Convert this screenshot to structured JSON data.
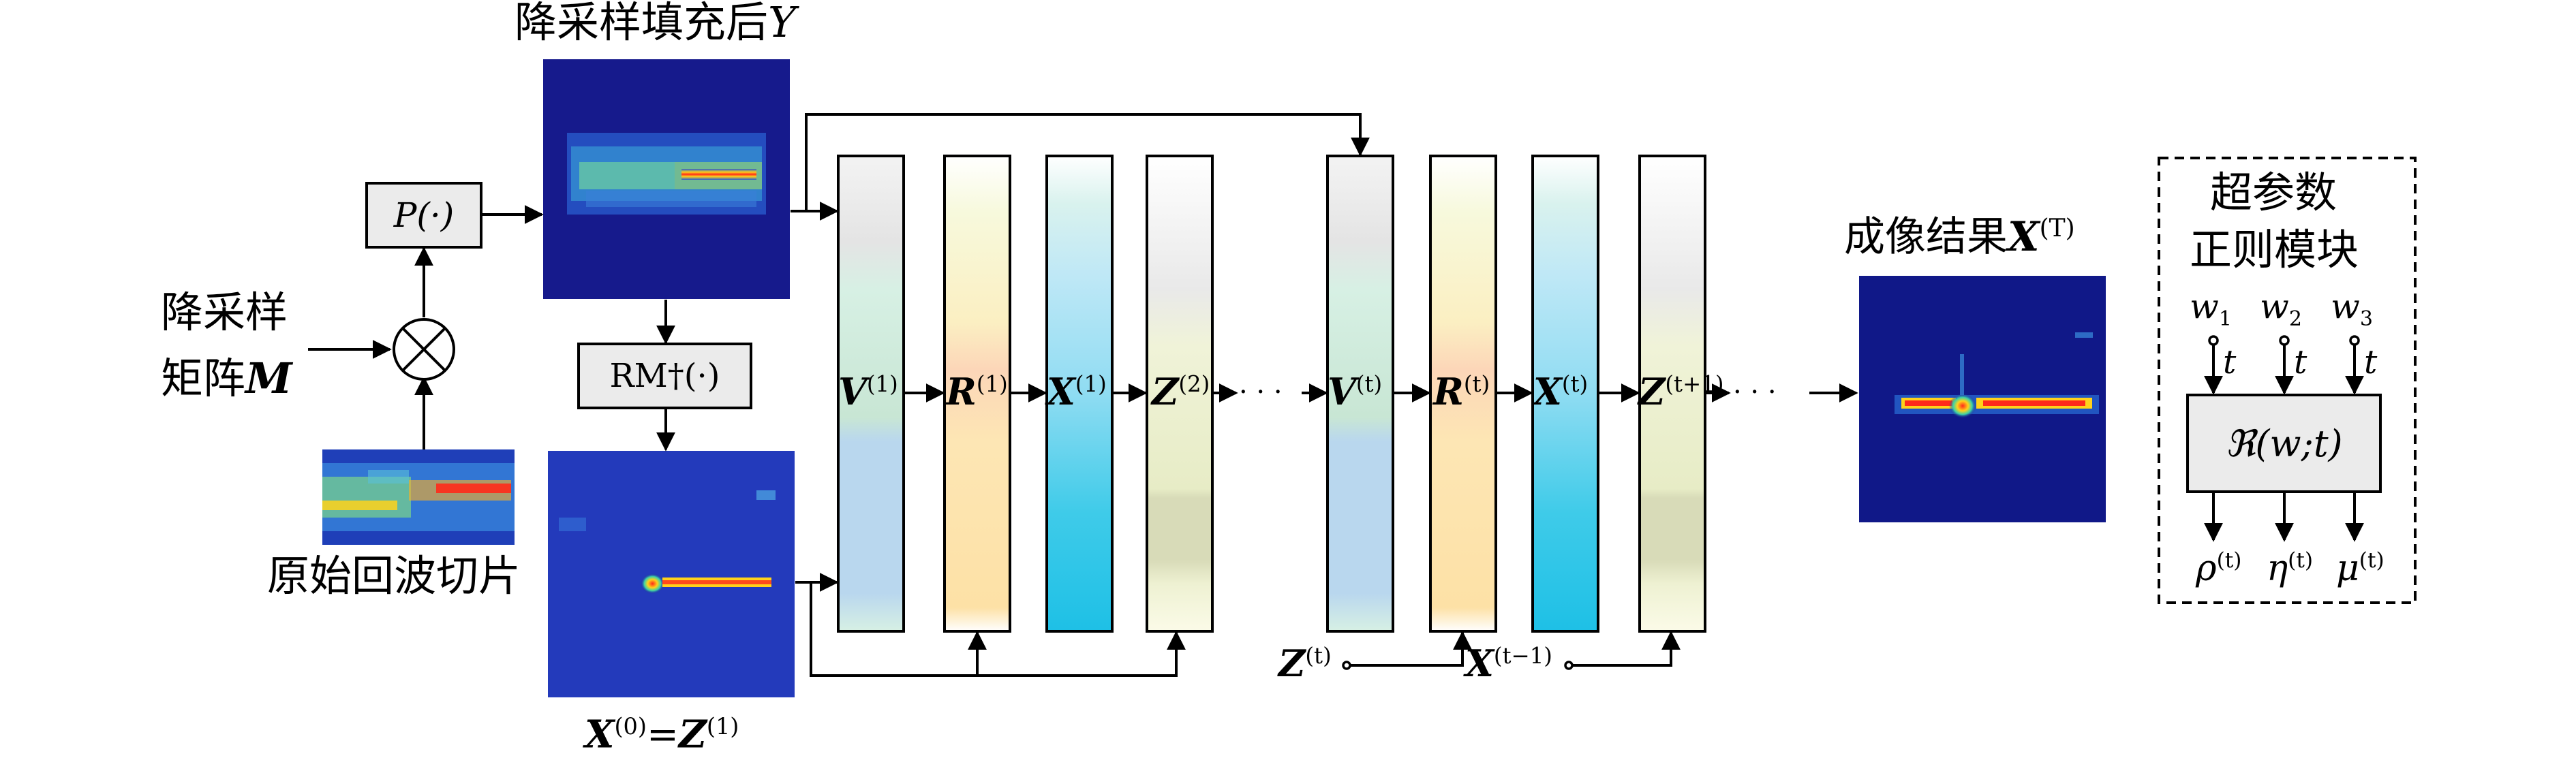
{
  "labels": {
    "top_title": "降采样填充后",
    "top_title_var": "Y",
    "p_box": "P(·)",
    "downsample_matrix_l1": "降采样",
    "downsample_matrix_l2": "矩阵",
    "downsample_matrix_var": "M",
    "raw_echo": "原始回波切片",
    "rm_box": "RM†(·)",
    "init_x": "X",
    "init_x_sup": "(0)",
    "init_eq": "=",
    "init_z": "Z",
    "init_z_sup": "(1)",
    "result_title": "成像结果",
    "result_var": "X",
    "result_sup": "(T)",
    "hyper_title_l1": "超参数",
    "hyper_title_l2": "正则模块",
    "w1": "w",
    "w1_sub": "1",
    "w2": "w",
    "w2_sub": "2",
    "w3": "w",
    "w3_sub": "3",
    "t_label": "t",
    "module_box": "ℜ(w;t)",
    "rho": "ρ",
    "eta": "η",
    "mu": "μ",
    "out_sup": "(t)",
    "ellipsis": "· · ·",
    "bottom_z": "Z",
    "bottom_z_sup": "(t)",
    "bottom_x": "X",
    "bottom_x_sup": "(t−1)"
  },
  "stages": [
    {
      "var": "V",
      "sup": "(1)"
    },
    {
      "var": "R",
      "sup": "(1)"
    },
    {
      "var": "X",
      "sup": "(1)"
    },
    {
      "var": "Z",
      "sup": "(2)"
    },
    {
      "var": "V",
      "sup": "(t)"
    },
    {
      "var": "R",
      "sup": "(t)"
    },
    {
      "var": "X",
      "sup": "(t)"
    },
    {
      "var": "Z",
      "sup": "(t+1)"
    }
  ],
  "colors": {
    "v_stage": "#bfe6d6",
    "r_stage": "#fde2a6",
    "x_stage": "#7fd6ef",
    "z_stage": "#e6ecc4",
    "radar_background": "#1a1f8e",
    "box_fill": "#ebebeb"
  }
}
